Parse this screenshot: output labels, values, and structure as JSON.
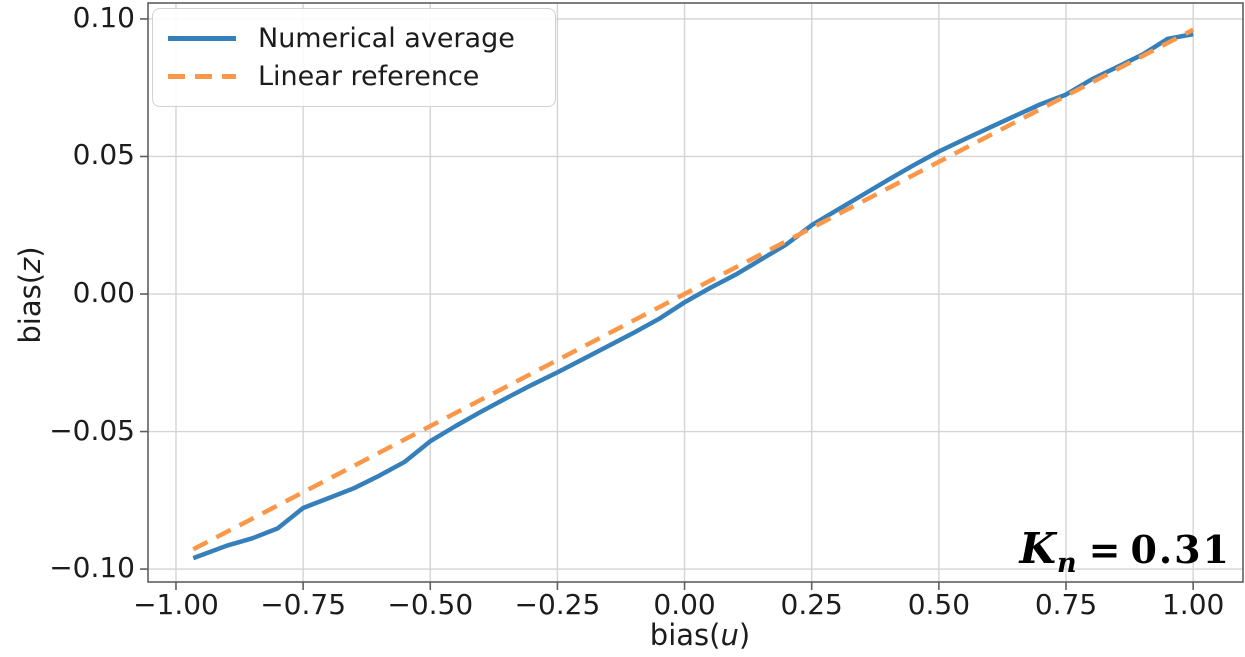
{
  "chart_data": {
    "type": "line",
    "title": "",
    "xlabel": {
      "prefix": "bias(",
      "var": "u",
      "suffix": ")"
    },
    "ylabel": {
      "prefix": "bias(",
      "var": "z",
      "suffix": ")"
    },
    "xlim": [
      -1.055,
      1.098
    ],
    "ylim": [
      -0.1047,
      0.1058
    ],
    "grid": true,
    "legend_position": "upper left",
    "xticks": {
      "values": [
        -1.0,
        -0.75,
        -0.5,
        -0.25,
        0.0,
        0.25,
        0.5,
        0.75,
        1.0
      ],
      "labels": [
        "−1.00",
        "−0.75",
        "−0.50",
        "−0.25",
        "0.00",
        "0.25",
        "0.50",
        "0.75",
        "1.00"
      ]
    },
    "yticks": {
      "values": [
        0.1,
        0.05,
        0.0,
        -0.05,
        -0.1
      ],
      "labels": [
        "0.10",
        "0.05",
        "0.00",
        "−0.05",
        "−0.10"
      ]
    },
    "series": [
      {
        "name": "Numerical average",
        "style": "solid",
        "color": "#3580ba",
        "points": [
          [
            -0.966,
            -0.096
          ],
          [
            -0.9,
            -0.0915
          ],
          [
            -0.85,
            -0.0888
          ],
          [
            -0.8,
            -0.0852
          ],
          [
            -0.75,
            -0.0778
          ],
          [
            -0.7,
            -0.0742
          ],
          [
            -0.65,
            -0.0706
          ],
          [
            -0.6,
            -0.066
          ],
          [
            -0.55,
            -0.061
          ],
          [
            -0.5,
            -0.0535
          ],
          [
            -0.45,
            -0.048
          ],
          [
            -0.4,
            -0.0428
          ],
          [
            -0.35,
            -0.0378
          ],
          [
            -0.3,
            -0.033
          ],
          [
            -0.25,
            -0.0285
          ],
          [
            -0.2,
            -0.0237
          ],
          [
            -0.15,
            -0.0189
          ],
          [
            -0.1,
            -0.0141
          ],
          [
            -0.05,
            -0.009
          ],
          [
            0.0,
            -0.003
          ],
          [
            0.05,
            0.0022
          ],
          [
            0.1,
            0.007
          ],
          [
            0.15,
            0.0125
          ],
          [
            0.2,
            0.018
          ],
          [
            0.25,
            0.025
          ],
          [
            0.3,
            0.0305
          ],
          [
            0.35,
            0.036
          ],
          [
            0.4,
            0.0415
          ],
          [
            0.45,
            0.0468
          ],
          [
            0.5,
            0.0518
          ],
          [
            0.55,
            0.0562
          ],
          [
            0.6,
            0.0605
          ],
          [
            0.65,
            0.0648
          ],
          [
            0.7,
            0.069
          ],
          [
            0.75,
            0.0725
          ],
          [
            0.8,
            0.078
          ],
          [
            0.85,
            0.0825
          ],
          [
            0.9,
            0.087
          ],
          [
            0.95,
            0.0928
          ],
          [
            1.0,
            0.0945
          ]
        ]
      },
      {
        "name": "Linear reference",
        "style": "dashed",
        "color": "#fb9748",
        "points": [
          [
            -0.966,
            -0.0928
          ],
          [
            1.0,
            0.0961
          ]
        ]
      }
    ],
    "annotation": {
      "var": "K",
      "sub": "n",
      "eq": "=",
      "value": "0.31"
    },
    "colors": {
      "spine": "#5f5f5f",
      "grid": "#d4d4d4",
      "text": "#1c1c1c",
      "blue_line": "#3580ba",
      "orange_line": "#fb9748"
    }
  }
}
